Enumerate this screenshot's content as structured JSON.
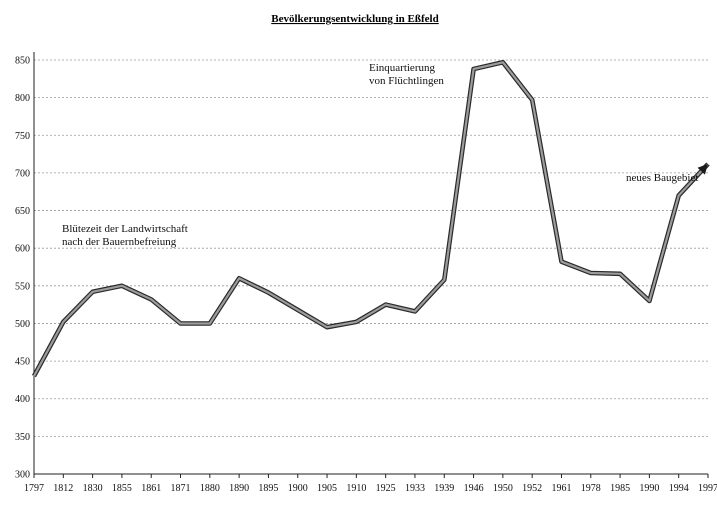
{
  "chart_data": {
    "type": "line",
    "title": "Bevölkerungsentwicklung in Eßfeld",
    "xlabel": "",
    "ylabel": "",
    "categories": [
      "1797",
      "1812",
      "1830",
      "1855",
      "1861",
      "1871",
      "1880",
      "1890",
      "1895",
      "1900",
      "1905",
      "1910",
      "1925",
      "1933",
      "1939",
      "1946",
      "1950",
      "1952",
      "1961",
      "1978",
      "1985",
      "1990",
      "1994",
      "1997"
    ],
    "series": [
      {
        "values": [
          430,
          502,
          542,
          550,
          532,
          500,
          500,
          560,
          541,
          518,
          495,
          502,
          525,
          516,
          558,
          838,
          847,
          797,
          582,
          567,
          566,
          530,
          670,
          712
        ]
      }
    ],
    "ylim": [
      300,
      850
    ],
    "yticks": [
      300,
      350,
      400,
      450,
      500,
      550,
      600,
      650,
      700,
      750,
      800,
      850
    ],
    "grid": true,
    "annotations": [
      {
        "text": [
          "Blütezeit der Landwirtschaft",
          "nach der Bauernbefreiung"
        ]
      },
      {
        "text": [
          "Einquartierung",
          "von Flüchtlingen"
        ]
      },
      {
        "text": [
          "neues Baugebiet"
        ]
      }
    ]
  }
}
